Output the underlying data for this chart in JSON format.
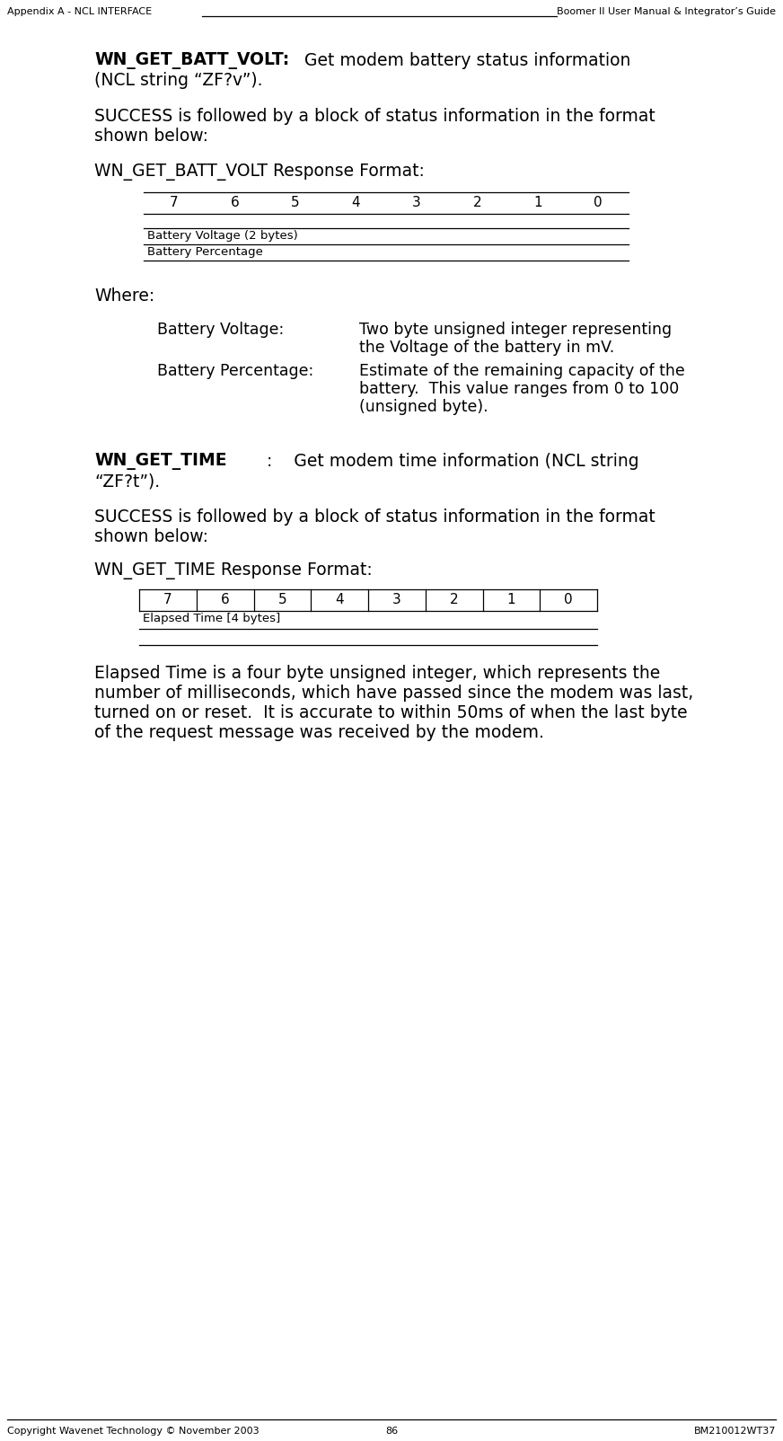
{
  "header_left": "Appendix A - NCL INTERFACE",
  "header_right": "Boomer II User Manual & Integrator’s Guide",
  "footer_left": "Copyright Wavenet Technology © November 2003",
  "footer_center": "86",
  "footer_right": "BM210012WT37",
  "section1_bold": "WN_GET_BATT_VOLT:",
  "section1_rest": "    Get modem battery status information",
  "section1_line2": "(NCL string “ZF?v”).",
  "section1_para": "SUCCESS is followed by a block of status information in the format",
  "section1_para2": "shown below:",
  "section1_table_title": "WN_GET_BATT_VOLT Response Format:",
  "bit_labels": [
    "7",
    "6",
    "5",
    "4",
    "3",
    "2",
    "1",
    "0"
  ],
  "table1_rows": [
    "Battery Voltage (2 bytes)",
    "Battery Percentage"
  ],
  "where": "Where:",
  "bv_label": "Battery Voltage:",
  "bv_line1": "Two byte unsigned integer representing",
  "bv_line2": "the Voltage of the battery in mV.",
  "bp_label": "Battery Percentage:",
  "bp_line1": "Estimate of the remaining capacity of the",
  "bp_line2": "battery.  This value ranges from 0 to 100",
  "bp_line3": "(unsigned byte).",
  "section2_bold": "WN_GET_TIME",
  "section2_rest": ":    Get modem time information (NCL string",
  "section2_line2": "“ZF?t”).",
  "section2_para": "SUCCESS is followed by a block of status information in the format",
  "section2_para2": "shown below:",
  "section2_table_title": "WN_GET_TIME Response Format:",
  "table2_rows": [
    "Elapsed Time [4 bytes]"
  ],
  "section2_body1": "Elapsed Time is a four byte unsigned integer, which represents the",
  "section2_body2": "number of milliseconds, which have passed since the modem was last,",
  "section2_body3": "turned on or reset.  It is accurate to within 50ms of when the last byte",
  "section2_body4": "of the request message was received by the modem.",
  "bg_color": "#ffffff",
  "text_color": "#000000"
}
